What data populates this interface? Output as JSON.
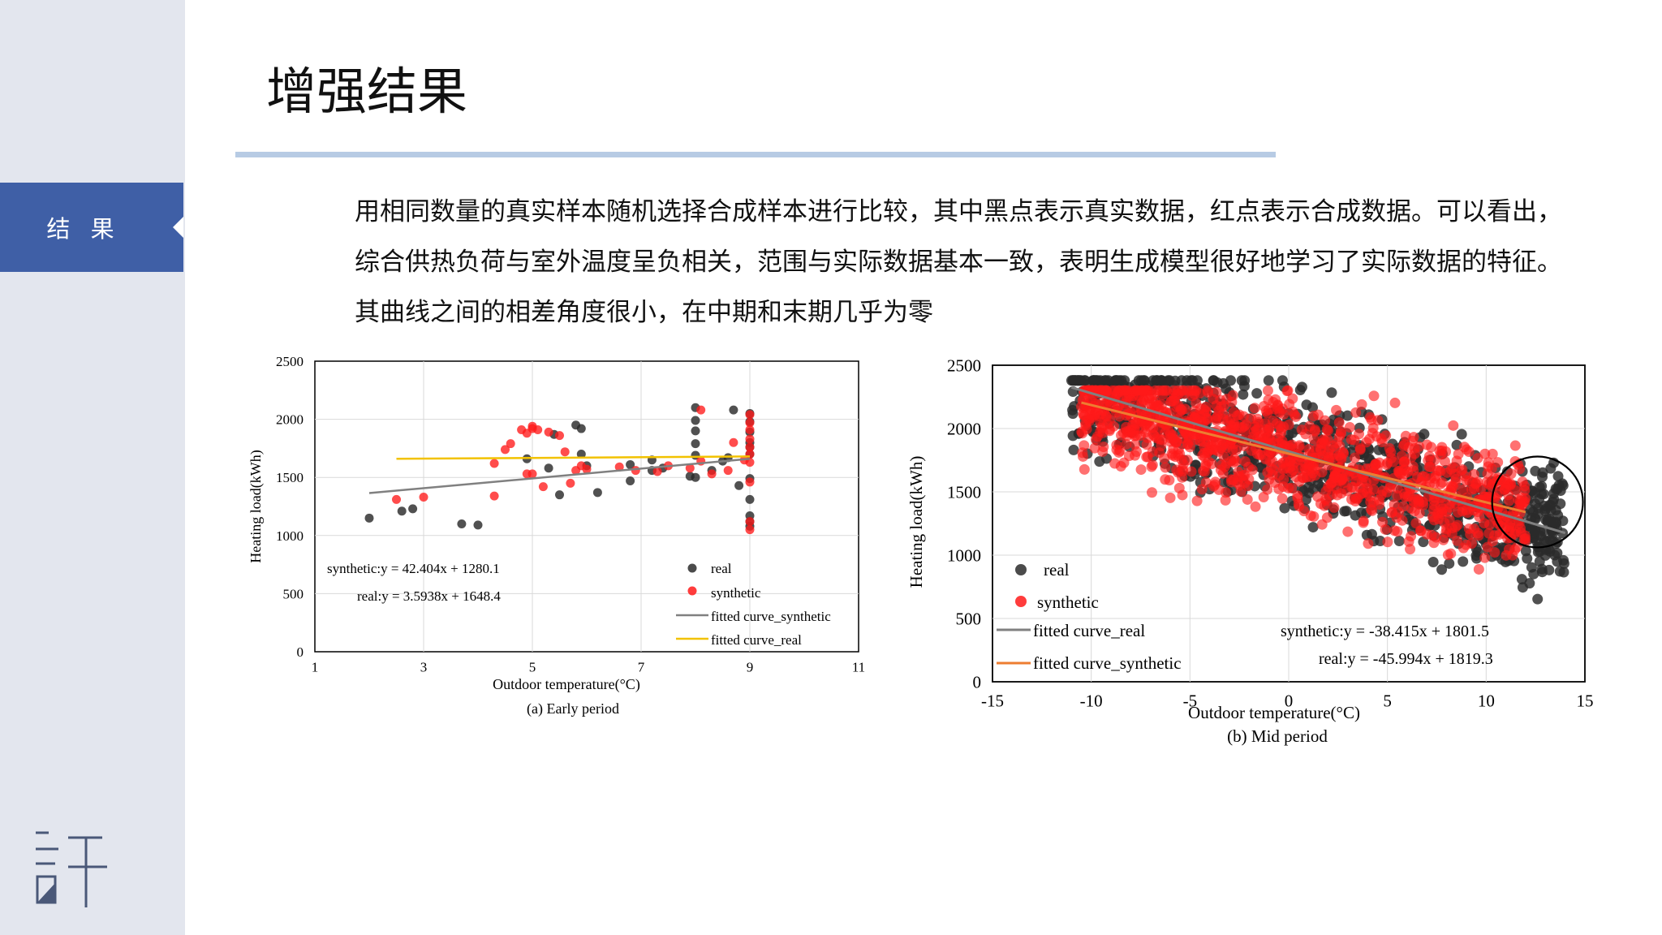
{
  "colors": {
    "accent": "#3f5fa6",
    "sidebar": "#e3e6ee",
    "rule": "#b7cbe4",
    "real": "#2b2b2b",
    "synthetic": "#ff1a1a",
    "fit_gray": "#808080",
    "fit_yellow": "#f2c200",
    "fit_orange": "#ed7d31"
  },
  "sidebar": {
    "nav_label": "结 果",
    "logo": "许-logo-icon"
  },
  "header": {
    "title": "增强结果"
  },
  "body": {
    "text": "用相同数量的真实样本随机选择合成样本进行比较，其中黑点表示真实数据，红点表示合成数据。可以看出，综合供热负荷与室外温度呈负相关，范围与实际数据基本一致，表明生成模型很好地学习了实际数据的特征。其曲线之间的相差角度很小，在中期和末期几乎为零"
  },
  "chart_data": [
    {
      "type": "scatter",
      "caption": "(a) Early period",
      "xlabel": "Outdoor temperature(°C)",
      "ylabel": "Heating load(kWh)",
      "xlim": [
        1,
        11
      ],
      "ylim": [
        0,
        2500
      ],
      "xticks": [
        "1",
        "3",
        "5",
        "7",
        "9",
        "11"
      ],
      "yticks": [
        "0",
        "500",
        "1000",
        "1500",
        "2000",
        "2500"
      ],
      "grid": true,
      "legend": {
        "placement": "bottom-right",
        "real": "real",
        "synthetic": "synthetic",
        "fit_synthetic": "fitted curve_synthetic",
        "fit_real": "fitted curve_real"
      },
      "equations": {
        "synthetic": "synthetic:y  = 42.404x + 1280.1",
        "real": "real:y = 3.5938x + 1648.4"
      },
      "fits": {
        "gray": {
          "x": [
            2,
            9
          ],
          "y": [
            1365,
            1660
          ]
        },
        "yellow": {
          "x": [
            2.5,
            9
          ],
          "y": [
            1660,
            1680
          ]
        }
      },
      "real": [
        [
          2,
          1150
        ],
        [
          2.6,
          1210
        ],
        [
          2.8,
          1230
        ],
        [
          3.7,
          1100
        ],
        [
          4,
          1090
        ],
        [
          4.9,
          1660
        ],
        [
          5.3,
          1580
        ],
        [
          5.4,
          1870
        ],
        [
          5.5,
          1350
        ],
        [
          5.8,
          1950
        ],
        [
          5.9,
          1920
        ],
        [
          5.9,
          1700
        ],
        [
          6,
          1600
        ],
        [
          6.2,
          1370
        ],
        [
          6.8,
          1610
        ],
        [
          6.8,
          1470
        ],
        [
          7.2,
          1560
        ],
        [
          7.2,
          1650
        ],
        [
          7.4,
          1580
        ],
        [
          7.9,
          1510
        ],
        [
          8,
          2100
        ],
        [
          8,
          1990
        ],
        [
          8,
          1900
        ],
        [
          8,
          1790
        ],
        [
          8,
          1690
        ],
        [
          8,
          1500
        ],
        [
          8.3,
          1560
        ],
        [
          8.5,
          1640
        ],
        [
          8.6,
          1670
        ],
        [
          8.8,
          1430
        ],
        [
          8.7,
          2080
        ],
        [
          9,
          2050
        ],
        [
          9,
          1980
        ],
        [
          9,
          1890
        ],
        [
          9,
          1800
        ],
        [
          9,
          1760
        ],
        [
          9,
          1700
        ],
        [
          9,
          1490
        ],
        [
          9,
          1310
        ],
        [
          9,
          1170
        ],
        [
          9,
          1120
        ],
        [
          9,
          1080
        ]
      ],
      "synthetic": [
        [
          2.5,
          1310
        ],
        [
          3,
          1330
        ],
        [
          4.3,
          1340
        ],
        [
          4.3,
          1620
        ],
        [
          4.5,
          1740
        ],
        [
          4.6,
          1790
        ],
        [
          4.8,
          1910
        ],
        [
          4.9,
          1530
        ],
        [
          4.9,
          1880
        ],
        [
          5,
          1920
        ],
        [
          5,
          1530
        ],
        [
          5,
          1940
        ],
        [
          5.1,
          1910
        ],
        [
          5.2,
          1420
        ],
        [
          5.3,
          1890
        ],
        [
          5.5,
          1860
        ],
        [
          5.6,
          1720
        ],
        [
          5.7,
          1450
        ],
        [
          5.8,
          1560
        ],
        [
          5.9,
          1600
        ],
        [
          6,
          1570
        ],
        [
          6.6,
          1590
        ],
        [
          6.9,
          1560
        ],
        [
          7.3,
          1550
        ],
        [
          7.5,
          1600
        ],
        [
          7.9,
          1580
        ],
        [
          8.1,
          2080
        ],
        [
          8.1,
          1640
        ],
        [
          8.3,
          1530
        ],
        [
          8.6,
          1560
        ],
        [
          8.7,
          1800
        ],
        [
          8.9,
          1650
        ],
        [
          9,
          2040
        ],
        [
          9,
          1970
        ],
        [
          9,
          1910
        ],
        [
          9,
          1830
        ],
        [
          9,
          1760
        ],
        [
          9,
          1700
        ],
        [
          9,
          1630
        ],
        [
          9,
          1460
        ],
        [
          9,
          1120
        ],
        [
          9,
          1050
        ]
      ]
    },
    {
      "type": "scatter",
      "caption": "(b) Mid period",
      "xlabel": "Outdoor temperature(°C)",
      "ylabel": "Heating load(kWh)",
      "xlim": [
        -15,
        15
      ],
      "ylim": [
        0,
        2500
      ],
      "xticks": [
        "-15",
        "-10",
        "-5",
        "0",
        "5",
        "10",
        "15"
      ],
      "yticks": [
        "0",
        "500",
        "1000",
        "1500",
        "2000",
        "2500"
      ],
      "grid": true,
      "legend": {
        "placement": "bottom-left",
        "real": "real",
        "synthetic": "synthetic",
        "fit_real": "fitted curve_real",
        "fit_synthetic": "fitted curve_synthetic"
      },
      "equations": {
        "synthetic": "synthetic:y  = -38.415x + 1801.5",
        "real": "real:y  = -45.994x + 1819.3"
      },
      "fits": {
        "gray": {
          "x": [
            -11,
            14
          ],
          "y": [
            2325,
            1175
          ]
        },
        "orange": {
          "x": [
            -10.5,
            12
          ],
          "y": [
            2205,
            1340
          ]
        }
      },
      "highlight": {
        "cx": 12.6,
        "cy": 1420,
        "r": 2.3
      }
    }
  ]
}
